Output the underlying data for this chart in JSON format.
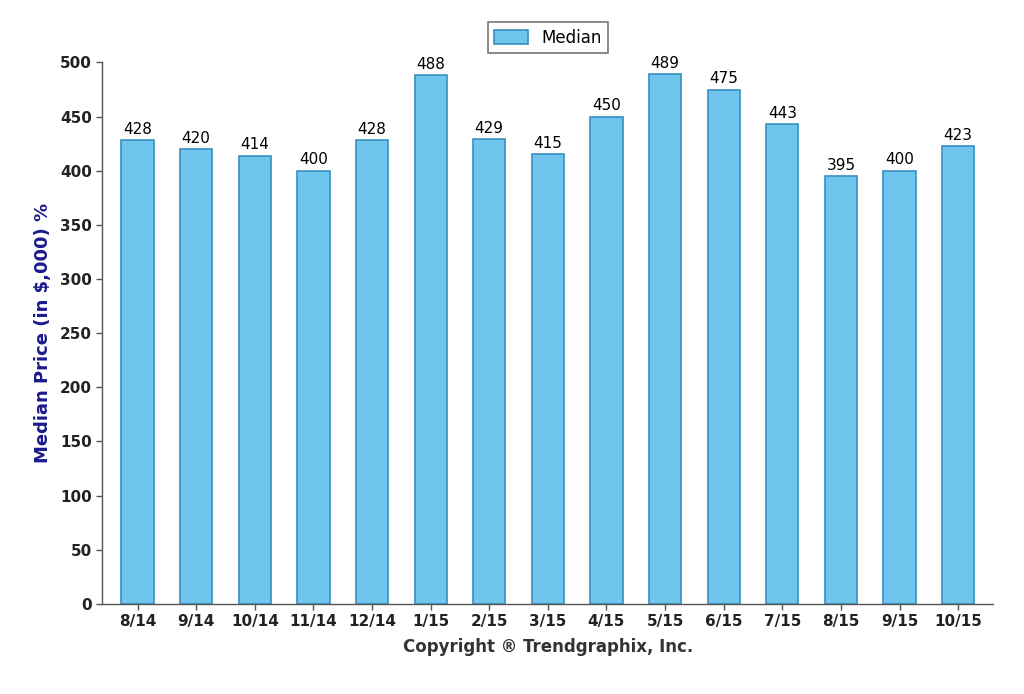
{
  "categories": [
    "8/14",
    "9/14",
    "10/14",
    "11/14",
    "12/14",
    "1/15",
    "2/15",
    "3/15",
    "4/15",
    "5/15",
    "6/15",
    "7/15",
    "8/15",
    "9/15",
    "10/15"
  ],
  "values": [
    428,
    420,
    414,
    400,
    428,
    488,
    429,
    415,
    450,
    489,
    475,
    443,
    395,
    400,
    423
  ],
  "bar_color": "#6EC6EE",
  "bar_edge_color": "#3A8FC0",
  "ylabel": "Median Price (in $,000) %",
  "xlabel": "Copyright ® Trendgraphix, Inc.",
  "ylim": [
    0,
    500
  ],
  "yticks": [
    0,
    50,
    100,
    150,
    200,
    250,
    300,
    350,
    400,
    450,
    500
  ],
  "legend_label": "Median",
  "label_fontsize": 12,
  "tick_fontsize": 11,
  "bar_label_fontsize": 11,
  "ylabel_fontsize": 13,
  "background_color": "#ffffff",
  "bar_width": 0.55
}
